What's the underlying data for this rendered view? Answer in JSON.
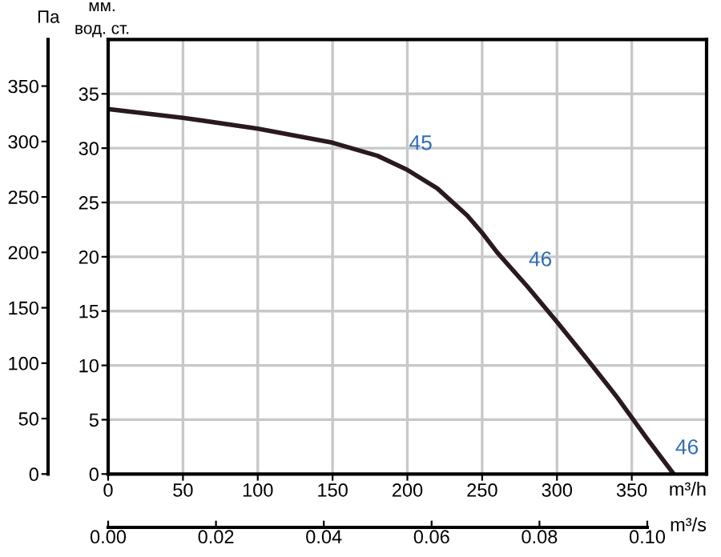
{
  "chart_data": {
    "type": "line",
    "xlabel": "m³/h",
    "x2label": "m³/s",
    "ylabel": "мм.\nвод. ст.",
    "y2label": "Па",
    "x": [
      0,
      50,
      100,
      150,
      180,
      200,
      220,
      240,
      250,
      260,
      280,
      300,
      320,
      340,
      360,
      378
    ],
    "series": [
      {
        "color": "#2a1a1e",
        "values": [
          33.6,
          32.8,
          31.8,
          30.5,
          29.3,
          28.0,
          26.3,
          23.8,
          22.2,
          20.4,
          17.3,
          14.0,
          10.6,
          7.1,
          3.3,
          0
        ]
      }
    ],
    "xlim": [
      0,
      400
    ],
    "xticks": [
      0,
      50,
      100,
      150,
      200,
      250,
      300,
      350
    ],
    "ylim": [
      0,
      40
    ],
    "yticks": [
      0,
      5,
      10,
      15,
      20,
      25,
      30,
      35
    ],
    "y2lim": [
      0,
      392
    ],
    "y2ticks": [
      0,
      50,
      100,
      150,
      200,
      250,
      300,
      350
    ],
    "x2lim": [
      0,
      0.111
    ],
    "x2ticks": [
      {
        "value": 0,
        "label": "0.00"
      },
      {
        "value": 0.02,
        "label": "0.02"
      },
      {
        "value": 0.04,
        "label": "0.04"
      },
      {
        "value": 0.06,
        "label": "0.06"
      },
      {
        "value": 0.08,
        "label": "0.08"
      },
      {
        "value": 0.1,
        "label": "0.10"
      }
    ],
    "annotations": [
      {
        "text": "45",
        "x": 200,
        "y": 28.0
      },
      {
        "text": "46",
        "x": 280,
        "y": 17.3
      },
      {
        "text": "46",
        "x": 378,
        "y": 0
      }
    ],
    "grid": true
  }
}
